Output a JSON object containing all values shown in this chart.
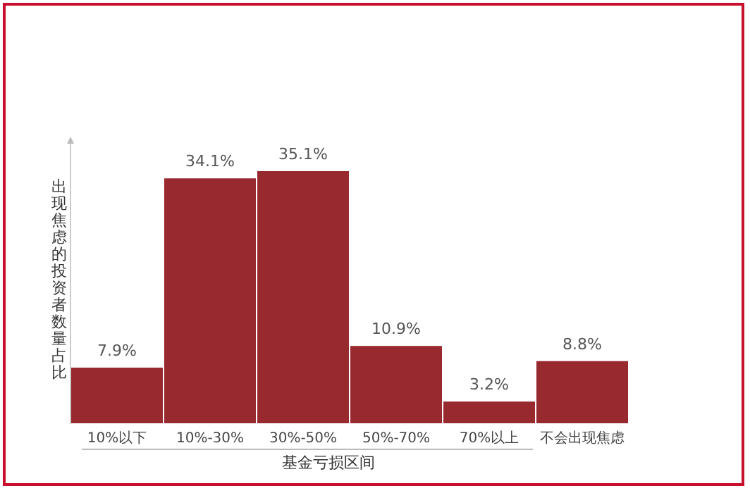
{
  "chart_data": {
    "type": "bar",
    "xlabel": "基金亏损区间",
    "ylabel": "出现焦虑的投资者数量占比",
    "categories": [
      "10%以下",
      "10%-30%",
      "30%-50%",
      "50%-70%",
      "70%以上",
      "不会出现焦虑"
    ],
    "values": [
      7.9,
      34.1,
      35.1,
      10.9,
      3.2,
      8.8
    ],
    "value_labels": [
      "7.9%",
      "34.1%",
      "35.1%",
      "10.9%",
      "3.2%",
      "8.8%"
    ],
    "color": "#98292f"
  }
}
